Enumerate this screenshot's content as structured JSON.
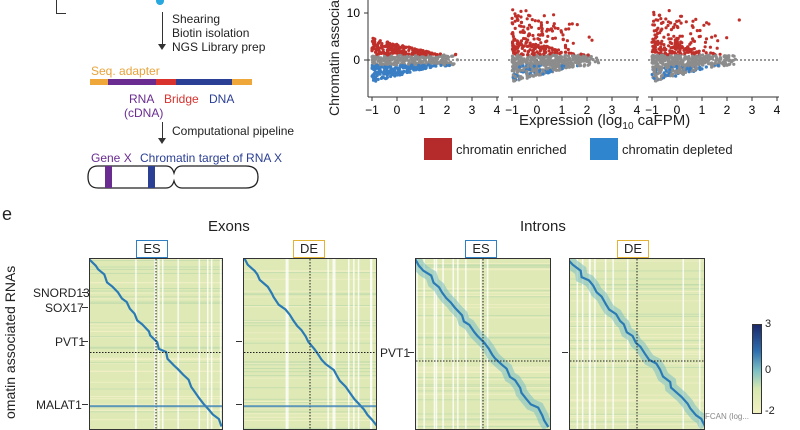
{
  "workflow": {
    "steps": [
      "Shearing",
      "Biotin isolation",
      "NGS Library prep"
    ],
    "seq_adapter": "Seq. adapter",
    "segments": {
      "rna": "RNA",
      "cdna": "(cDNA)",
      "bridge": "Bridge",
      "dna": "DNA"
    },
    "pipeline": "Computational pipeline",
    "gene_label": "Gene X",
    "target_label": "Chromatin target of RNA X"
  },
  "scatter": {
    "ylabel": "Chromatin associat",
    "xlabel_pre": "Expression (log",
    "xlabel_sub": "10",
    "xlabel_post": " caFPM)",
    "y_ticks": [
      "10",
      "0"
    ],
    "x_ticks": [
      "−1",
      "0",
      "1",
      "2",
      "3",
      "4"
    ],
    "colors": {
      "enriched": "#c0302b",
      "depleted": "#3a7ec4",
      "neutral": "#8c8c8c"
    },
    "legend": {
      "enriched": "chromatin enriched",
      "depleted": "chromatin depleted"
    }
  },
  "heatmaps": {
    "panel_letter": "e",
    "exons_title": "Exons",
    "introns_title": "Introns",
    "ylabel": "omatin associated RNAs",
    "es": "ES",
    "de": "DE",
    "row_labels_exons": [
      "SNORD13",
      "SOX17",
      "PVT1",
      "MALAT1"
    ],
    "row_label_introns": "PVT1",
    "colorbar_ticks": [
      "3",
      "0",
      "-2"
    ],
    "colorbar_cut": "FCAN (log..."
  }
}
